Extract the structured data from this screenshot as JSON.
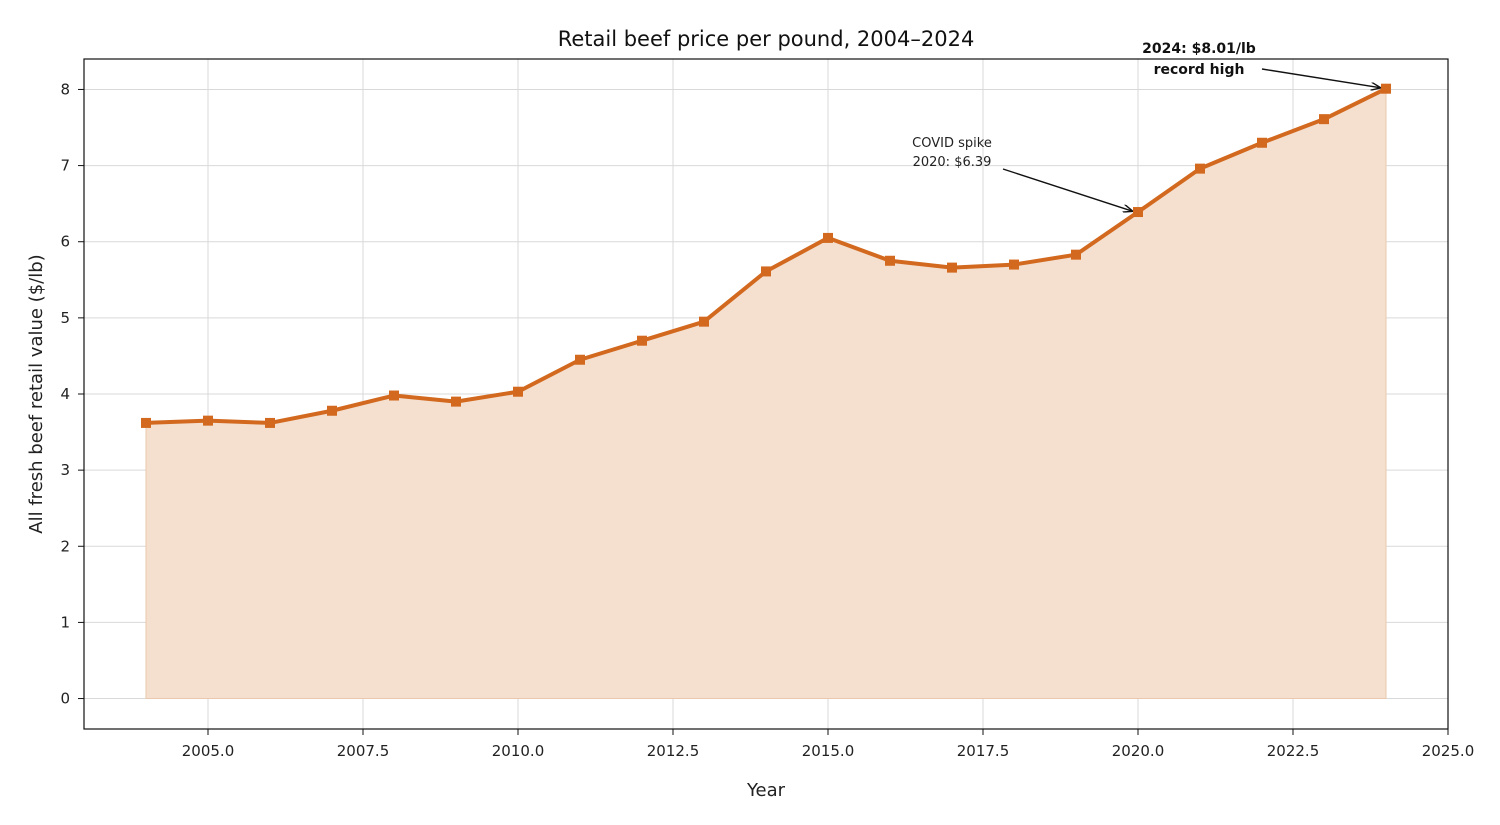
{
  "chart_data": {
    "type": "area",
    "title": "Retail beef price per pound, 2004–2024",
    "xlabel": "Year",
    "ylabel": "All fresh beef retail value ($/lb)",
    "xlim": [
      2003,
      2025
    ],
    "ylim": [
      -0.4,
      8.4
    ],
    "xticks": [
      2005.0,
      2007.5,
      2010.0,
      2012.5,
      2015.0,
      2017.5,
      2020.0,
      2022.5,
      2025.0
    ],
    "xtick_labels": [
      "2005.0",
      "2007.5",
      "2010.0",
      "2012.5",
      "2015.0",
      "2017.5",
      "2020.0",
      "2022.5",
      "2025.0"
    ],
    "yticks": [
      0,
      1,
      2,
      3,
      4,
      5,
      6,
      7,
      8
    ],
    "ytick_labels": [
      "0",
      "1",
      "2",
      "3",
      "4",
      "5",
      "6",
      "7",
      "8"
    ],
    "grid": true,
    "series": [
      {
        "x": [
          2004,
          2005,
          2006,
          2007,
          2008,
          2009,
          2010,
          2011,
          2012,
          2013,
          2014,
          2015,
          2016,
          2017,
          2018,
          2019,
          2020,
          2021,
          2022,
          2023,
          2024
        ],
        "values": [
          3.62,
          3.65,
          3.62,
          3.78,
          3.98,
          3.9,
          4.03,
          4.45,
          4.7,
          4.95,
          5.61,
          6.05,
          5.75,
          5.66,
          5.7,
          5.83,
          6.39,
          6.96,
          7.3,
          7.61,
          8.01
        ],
        "color": "#d2691e",
        "fill_color": "#f5dfcf",
        "marker": "square"
      }
    ],
    "annotations": [
      {
        "lines": [
          "COVID spike",
          "2020: $6.39"
        ],
        "x": 2020,
        "y": 6.39,
        "bold": false
      },
      {
        "lines": [
          "2024: $8.01/lb",
          "record high"
        ],
        "x": 2024,
        "y": 8.01,
        "bold": true
      }
    ]
  }
}
